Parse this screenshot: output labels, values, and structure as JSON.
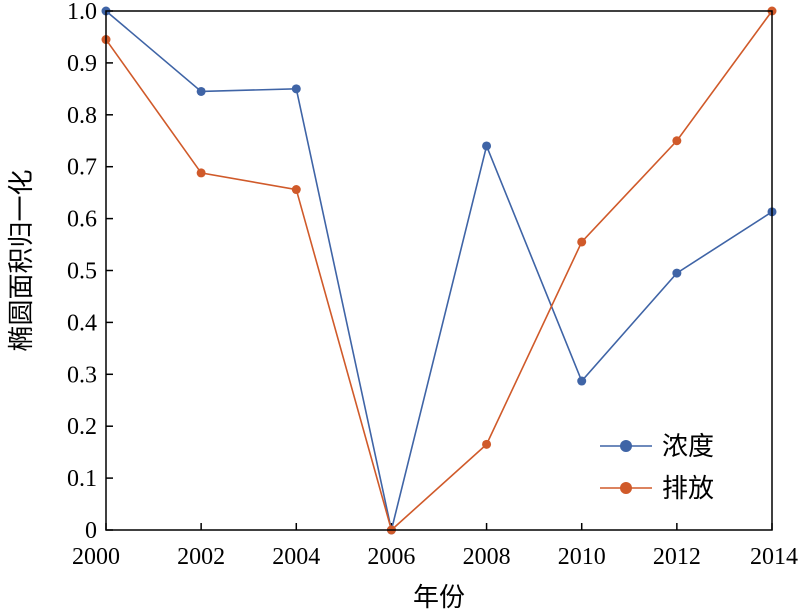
{
  "chart_data": {
    "type": "line",
    "x": [
      2000,
      2002,
      2004,
      2006,
      2008,
      2010,
      2012,
      2014
    ],
    "series": [
      {
        "name": "浓度",
        "color": "#3f64a6",
        "values": [
          1.0,
          0.845,
          0.85,
          0.0,
          0.74,
          0.287,
          0.495,
          0.613
        ]
      },
      {
        "name": "排放",
        "color": "#d05a2a",
        "values": [
          0.945,
          0.688,
          0.656,
          0.0,
          0.165,
          0.555,
          0.75,
          1.0
        ]
      }
    ],
    "title": "",
    "xlabel": "年份",
    "ylabel": "椭圆面积归一化",
    "xlim": [
      2000,
      2014
    ],
    "ylim": [
      0,
      1.0
    ],
    "xticks": [
      "2000",
      "2002",
      "2004",
      "2006",
      "2008",
      "2010",
      "2012",
      "2014"
    ],
    "yticks": [
      "0",
      "0.1",
      "0.2",
      "0.3",
      "0.4",
      "0.5",
      "0.6",
      "0.7",
      "0.8",
      "0.9",
      "1.0"
    ],
    "grid": false,
    "legend": "bottom-right"
  }
}
